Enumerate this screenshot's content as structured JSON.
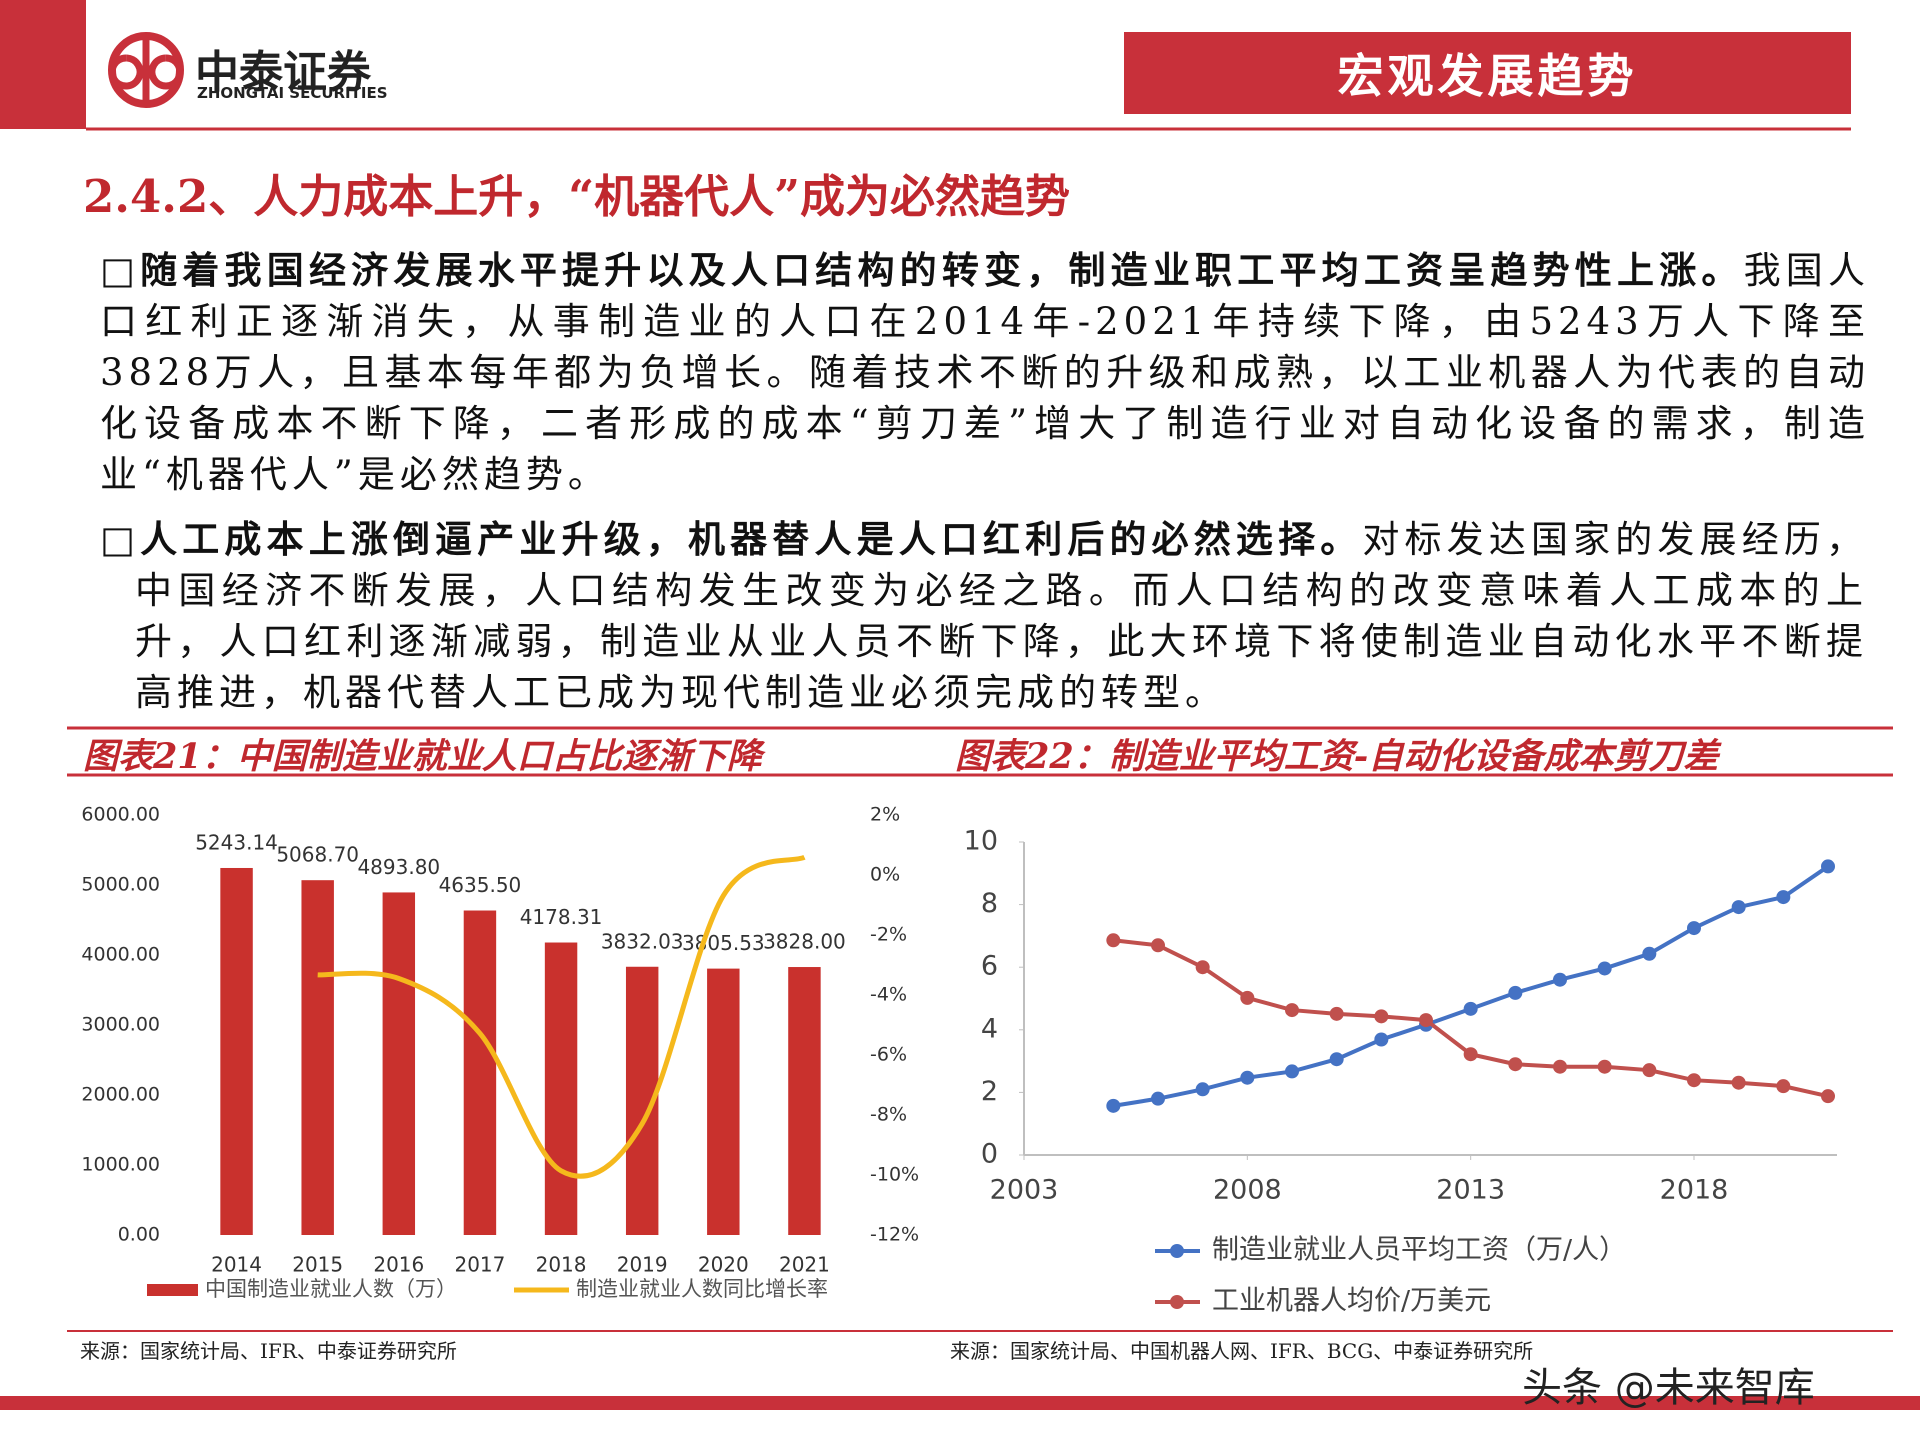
{
  "header": {
    "logo_cn": "中泰证券",
    "logo_en": "ZHONGTAI SECURITIES",
    "banner": "宏观发展趋势"
  },
  "section_title": "2.4.2、人力成本上升，“机器代人”成为必然趋势",
  "paragraphs": [
    {
      "lead": "□随着我国经济发展水平提升以及人口结构的转变，制造业职工平均工资呈趋势性上涨。",
      "text": "我国人口红利正逐渐消失，从事制造业的人口在2014年-2021年持续下降，由5243万人下降至3828万人，且基本每年都为负增长。随着技术不断的升级和成熟，以工业机器人为代表的自动化设备成本不断下降，二者形成的成本“剪刀差”增大了制造行业对自动化设备的需求，制造业“机器代人”是必然趋势。"
    },
    {
      "lead": "□人工成本上涨倒逼产业升级，机器替人是人口红利后的必然选择。",
      "text": "对标发达国家的发展经历，中国经济不断发展，人口结构发生改变为必经之路。而人口结构的改变意味着人工成本的上升，人口红利逐渐减弱，制造业从业人员不断下降，此大环境下将使制造业自动化水平不断提高推进，机器代替人工已成为现代制造业必须完成的转型。"
    }
  ],
  "chart_data": [
    {
      "type": "bar",
      "title": "图表21：中国制造业就业人口占比逐渐下降",
      "source": "来源：国家统计局、IFR、中泰证券研究所",
      "categories": [
        "2014",
        "2015",
        "2016",
        "2017",
        "2018",
        "2019",
        "2020",
        "2021"
      ],
      "series": [
        {
          "name": "中国制造业就业人数（万）",
          "color": "#c9312d",
          "values": [
            5243.14,
            5068.7,
            4893.8,
            4635.5,
            4178.31,
            3832.03,
            3805.53,
            3828
          ],
          "value_labels": [
            "5243.14",
            "5068.70",
            "4893.80",
            "4635.50",
            "4178.31",
            "3832.03",
            "3805.53",
            "3828.00"
          ]
        },
        {
          "name": "制造业就业人数同比增长率",
          "color": "#f5b81c",
          "type": "line",
          "axis": "y2",
          "values": [
            null,
            -3.33,
            -3.45,
            -5.28,
            -9.86,
            -8.29,
            -0.69,
            0.59
          ]
        }
      ],
      "ylim": [
        0,
        6000
      ],
      "yticks": [
        {
          "value": 0,
          "label": "0.00"
        },
        {
          "value": 1000,
          "label": "1000.00"
        },
        {
          "value": 2000,
          "label": "2000.00"
        },
        {
          "value": 3000,
          "label": "3000.00"
        },
        {
          "value": 4000,
          "label": "4000.00"
        },
        {
          "value": 5000,
          "label": "5000.00"
        },
        {
          "value": 6000,
          "label": "6000.00"
        }
      ],
      "y2lim": [
        -12,
        2
      ],
      "y2ticks": [
        {
          "value": -12,
          "label": "-12%"
        },
        {
          "value": -10,
          "label": "-10%"
        },
        {
          "value": -8,
          "label": "-8%"
        },
        {
          "value": -6,
          "label": "-6%"
        },
        {
          "value": -4,
          "label": "-4%"
        },
        {
          "value": -2,
          "label": "-2%"
        },
        {
          "value": 0,
          "label": "0%"
        },
        {
          "value": 2,
          "label": "2%"
        }
      ],
      "legend": "bottom"
    },
    {
      "type": "line",
      "title": "图表22：制造业平均工资-自动化设备成本剪刀差",
      "source": "来源：国家统计局、中国机器人网、IFR、BCG、中泰证券研究所",
      "x": [
        2005,
        2006,
        2007,
        2008,
        2009,
        2010,
        2011,
        2012,
        2013,
        2014,
        2015,
        2016,
        2017,
        2018,
        2019,
        2020,
        2021
      ],
      "series": [
        {
          "name": "制造业就业人员平均工资（万/人）",
          "color": "#4472c4",
          "values": [
            1.57,
            1.8,
            2.1,
            2.47,
            2.67,
            3.06,
            3.69,
            4.16,
            4.67,
            5.18,
            5.6,
            5.96,
            6.43,
            7.25,
            7.92,
            8.24,
            9.22
          ]
        },
        {
          "name": "工业机器人均价/万美元",
          "color": "#c0504d",
          "values": [
            6.86,
            6.7,
            6.0,
            5.02,
            4.63,
            4.51,
            4.43,
            4.31,
            3.22,
            2.9,
            2.82,
            2.82,
            2.71,
            2.39,
            2.31,
            2.2,
            1.88
          ]
        }
      ],
      "xlim": [
        2003,
        2021
      ],
      "xticks": [
        2003,
        2008,
        2013,
        2018
      ],
      "ylim": [
        0,
        10
      ],
      "yticks": [
        0,
        2,
        4,
        6,
        8,
        10
      ],
      "legend": "bottom"
    }
  ],
  "watermark": "头条 @未来智库"
}
